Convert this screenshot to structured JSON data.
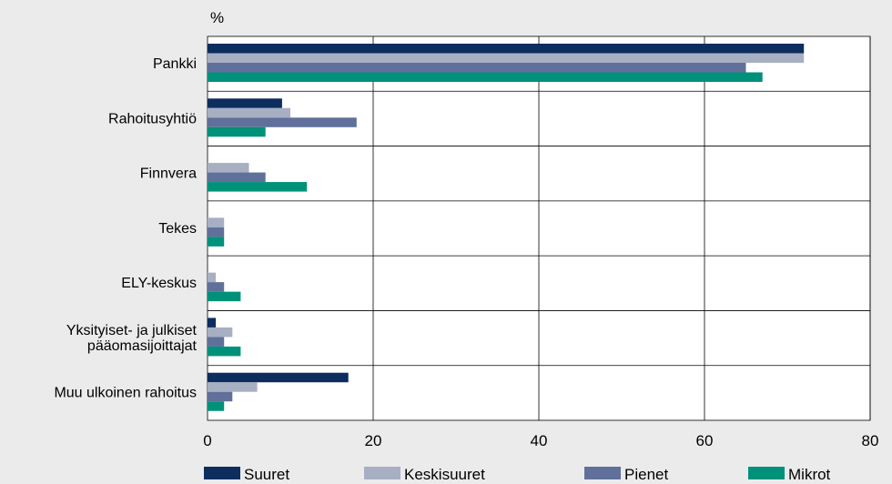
{
  "chart_data": {
    "type": "bar",
    "orientation": "horizontal",
    "unit_label": "%",
    "categories": [
      "Pankki",
      "Rahoitusyhtiö",
      "Finnvera",
      "Tekes",
      "ELY-keskus",
      "Yksityiset- ja julkiset pääomasijoittajat",
      "Muu ulkoinen rahoitus"
    ],
    "category_label_lines": [
      [
        "Pankki"
      ],
      [
        "Rahoitusyhtiö"
      ],
      [
        "Finnvera"
      ],
      [
        "Tekes"
      ],
      [
        "ELY-keskus"
      ],
      [
        "Yksityiset- ja julkiset",
        "pääomasijoittajat"
      ],
      [
        "Muu ulkoinen rahoitus"
      ]
    ],
    "series": [
      {
        "name": "Suuret",
        "color": "#0c2d5e",
        "values": [
          72,
          9,
          0,
          0,
          0,
          1,
          17
        ]
      },
      {
        "name": "Keskisuuret",
        "color": "#a7afc3",
        "values": [
          72,
          10,
          5,
          2,
          1,
          3,
          6
        ]
      },
      {
        "name": "Pienet",
        "color": "#60709a",
        "values": [
          65,
          18,
          7,
          2,
          2,
          2,
          3
        ]
      },
      {
        "name": "Mikrot",
        "color": "#00917a",
        "values": [
          67,
          7,
          12,
          2,
          4,
          4,
          2
        ]
      }
    ],
    "xlim": [
      0,
      80
    ],
    "xticks": [
      "0",
      "20",
      "40",
      "60",
      "80"
    ],
    "grid": true,
    "legend_position": "bottom"
  }
}
